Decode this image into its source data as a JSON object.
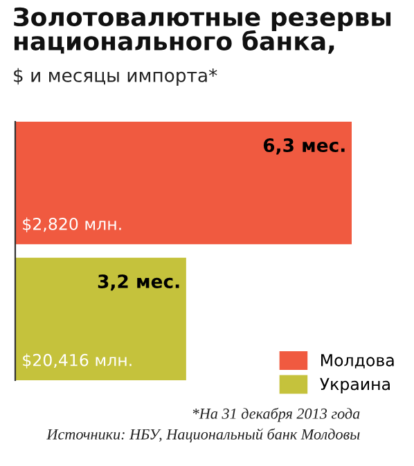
{
  "chart_data": {
    "type": "bar",
    "orientation": "horizontal",
    "stacked": true,
    "title": "Золотовалютные резервы\nнационального банка,",
    "subtitle": "$ и месяцы импорта*",
    "categories": [
      null,
      null
    ],
    "series": [
      {
        "name": "Молдова",
        "color": "#f05a40",
        "values": [
          6.3,
          null
        ],
        "value_labels": [
          "6,3 мес.",
          null
        ]
      },
      {
        "name": "Украина",
        "color": "#c5c23c",
        "values": [
          null,
          3.2
        ],
        "value_labels": [
          null,
          "3,2 мес."
        ]
      }
    ],
    "annotations": [
      {
        "text": "$2,820 млн.",
        "x": 0
      },
      {
        "text": "$20,416 млн.",
        "x": 0
      },
      "*На 31 декабря 2013 года",
      "Источники: НБУ, Национальный банк Молдовы"
    ],
    "legend": "bottom right",
    "grid": false
  }
}
